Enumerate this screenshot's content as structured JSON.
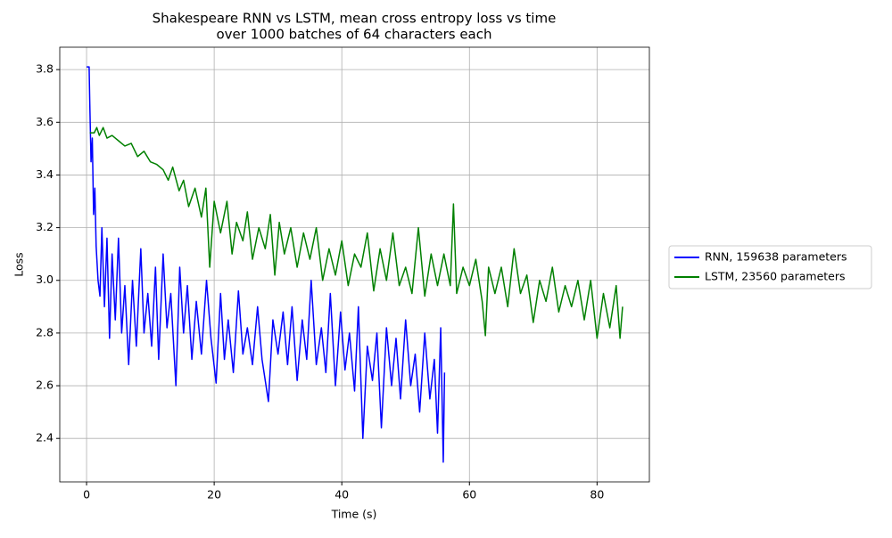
{
  "chart_data": {
    "type": "line",
    "title": "Shakespeare RNN vs LSTM, mean cross entropy loss vs time",
    "subtitle": "over 1000 batches of 64 characters each",
    "x_label": "Time (s)",
    "y_label": "Loss",
    "xlim": [
      -4.2,
      88.2
    ],
    "ylim": [
      2.235,
      3.885
    ],
    "xticks": [
      0,
      20,
      40,
      60,
      80
    ],
    "yticks": [
      2.4,
      2.6,
      2.8,
      {
        "value": 3,
        "label": "3.0"
      },
      3.2,
      3.4,
      3.6,
      3.8
    ],
    "grid": true,
    "legend": "right",
    "series": [
      {
        "name": "RNN, 159638 parameters",
        "color": "#0000ff",
        "x": [
          0,
          0.4,
          0.5,
          0.7,
          0.9,
          1.1,
          1.3,
          1.5,
          1.8,
          2.1,
          2.4,
          2.8,
          3.2,
          3.6,
          4.0,
          4.5,
          5.0,
          5.5,
          6.0,
          6.6,
          7.2,
          7.8,
          8.5,
          9.0,
          9.6,
          10.2,
          10.8,
          11.3,
          12.0,
          12.6,
          13.2,
          14.0,
          14.6,
          15.2,
          15.8,
          16.5,
          17.2,
          18.0,
          18.8,
          19.5,
          20.3,
          21.0,
          21.6,
          22.2,
          23.0,
          23.8,
          24.5,
          25.2,
          26.0,
          26.8,
          27.5,
          28.5,
          29.2,
          30.0,
          30.8,
          31.5,
          32.2,
          33.0,
          33.8,
          34.5,
          35.2,
          36.0,
          36.8,
          37.5,
          38.2,
          39.0,
          39.8,
          40.5,
          41.2,
          42.0,
          42.6,
          43.3,
          44.0,
          44.8,
          45.5,
          46.2,
          47.0,
          47.8,
          48.5,
          49.2,
          50.0,
          50.8,
          51.5,
          52.2,
          53.0,
          53.8,
          54.5,
          55.0,
          55.5,
          55.9,
          56.1
        ],
        "values": [
          3.81,
          3.81,
          3.68,
          3.45,
          3.54,
          3.25,
          3.35,
          3.13,
          3.0,
          2.94,
          3.2,
          2.9,
          3.16,
          2.78,
          3.1,
          2.85,
          3.16,
          2.8,
          2.98,
          2.68,
          3.0,
          2.75,
          3.12,
          2.8,
          2.95,
          2.75,
          3.05,
          2.7,
          3.1,
          2.82,
          2.95,
          2.6,
          3.05,
          2.8,
          2.98,
          2.7,
          2.92,
          2.72,
          3.0,
          2.78,
          2.61,
          2.95,
          2.7,
          2.85,
          2.65,
          2.96,
          2.72,
          2.82,
          2.68,
          2.9,
          2.7,
          2.54,
          2.85,
          2.72,
          2.88,
          2.68,
          2.9,
          2.62,
          2.85,
          2.7,
          3.0,
          2.68,
          2.82,
          2.65,
          2.95,
          2.6,
          2.88,
          2.66,
          2.8,
          2.58,
          2.9,
          2.4,
          2.75,
          2.62,
          2.8,
          2.44,
          2.82,
          2.6,
          2.78,
          2.55,
          2.85,
          2.6,
          2.72,
          2.5,
          2.8,
          2.55,
          2.7,
          2.42,
          2.82,
          2.31,
          2.65
        ]
      },
      {
        "name": "LSTM, 23560 parameters",
        "color": "#008000",
        "x": [
          0.5,
          1.2,
          1.6,
          2.0,
          2.6,
          3.2,
          4.0,
          5.0,
          6.0,
          7.0,
          8.0,
          9.0,
          10.0,
          11.0,
          12.0,
          12.8,
          13.5,
          14.5,
          15.2,
          16.0,
          17.0,
          18.0,
          18.7,
          19.3,
          20.0,
          21.0,
          22.0,
          22.8,
          23.5,
          24.5,
          25.2,
          26.0,
          27.0,
          28.0,
          28.8,
          29.5,
          30.2,
          31.0,
          32.0,
          33.0,
          34.0,
          35.0,
          36.0,
          37.0,
          38.0,
          39.0,
          40.0,
          41.0,
          42.0,
          43.0,
          44.0,
          45.0,
          46.0,
          47.0,
          48.0,
          49.0,
          50.0,
          51.0,
          52.0,
          53.0,
          54.0,
          55.0,
          56.0,
          57.0,
          57.5,
          58.0,
          59.0,
          60.0,
          61.0,
          62.0,
          62.5,
          63.0,
          64.0,
          65.0,
          66.0,
          67.0,
          68.0,
          69.0,
          70.0,
          71.0,
          72.0,
          73.0,
          74.0,
          75.0,
          76.0,
          77.0,
          78.0,
          79.0,
          80.0,
          81.0,
          82.0,
          83.0,
          83.6,
          84.0
        ],
        "values": [
          3.56,
          3.56,
          3.58,
          3.55,
          3.58,
          3.54,
          3.55,
          3.53,
          3.51,
          3.52,
          3.47,
          3.49,
          3.45,
          3.44,
          3.42,
          3.38,
          3.43,
          3.34,
          3.38,
          3.28,
          3.35,
          3.24,
          3.35,
          3.05,
          3.3,
          3.18,
          3.3,
          3.1,
          3.22,
          3.15,
          3.26,
          3.08,
          3.2,
          3.12,
          3.25,
          3.02,
          3.22,
          3.1,
          3.2,
          3.05,
          3.18,
          3.08,
          3.2,
          3.0,
          3.12,
          3.02,
          3.15,
          2.98,
          3.1,
          3.05,
          3.18,
          2.96,
          3.12,
          3.0,
          3.18,
          2.98,
          3.05,
          2.95,
          3.2,
          2.94,
          3.1,
          2.98,
          3.1,
          2.98,
          3.29,
          2.95,
          3.05,
          2.98,
          3.08,
          2.92,
          2.79,
          3.05,
          2.95,
          3.05,
          2.9,
          3.12,
          2.95,
          3.02,
          2.84,
          3.0,
          2.92,
          3.05,
          2.88,
          2.98,
          2.9,
          3.0,
          2.85,
          3.0,
          2.78,
          2.95,
          2.82,
          2.98,
          2.78,
          2.9
        ]
      }
    ]
  }
}
